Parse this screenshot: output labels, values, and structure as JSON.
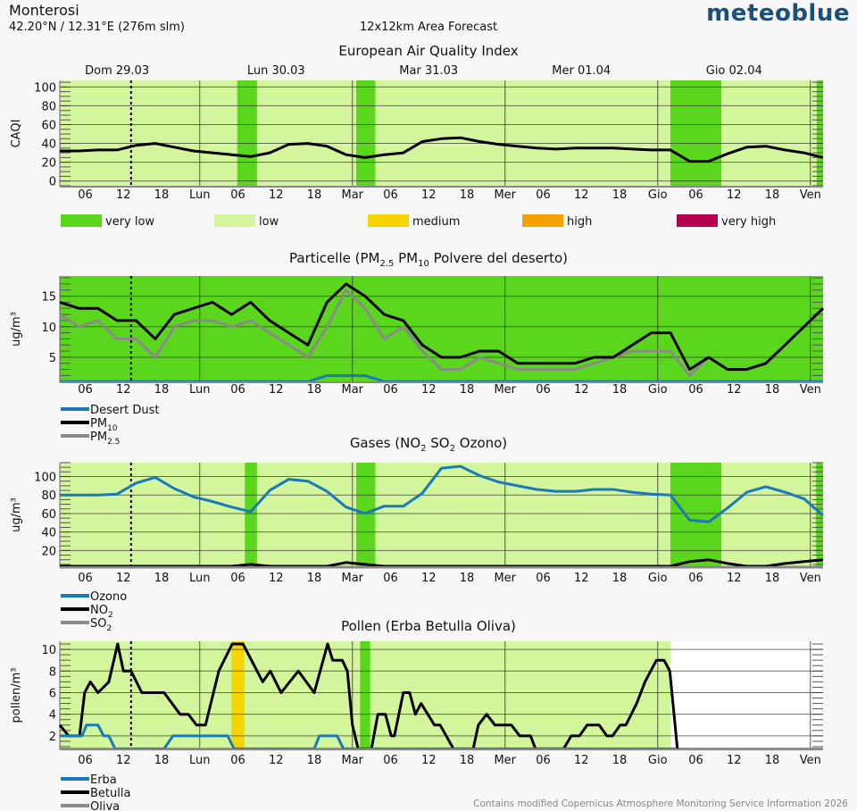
{
  "header": {
    "location": "Monterosi",
    "coordinates": "42.20°N / 12.31°E (276m slm)",
    "area": "12x12km Area Forecast",
    "logo": "meteoblue"
  },
  "footer": "Contains modified Copernicus Atmosphere Monitoring Service Information 2026",
  "caqi_legend": [
    {
      "label": "very low",
      "color": "#5ad61c"
    },
    {
      "label": "low",
      "color": "#d3f69c"
    },
    {
      "label": "medium",
      "color": "#f5d400"
    },
    {
      "label": "high",
      "color": "#f5a100"
    },
    {
      "label": "very high",
      "color": "#b5004d"
    }
  ],
  "days": [
    {
      "label": "Dom 29.03",
      "center_h": 9
    },
    {
      "label": "Lun 30.03",
      "center_h": 34
    },
    {
      "label": "Mar 31.03",
      "center_h": 58
    },
    {
      "label": "Mer 01.04",
      "center_h": 82
    },
    {
      "label": "Gio 02.04",
      "center_h": 106
    }
  ],
  "x_ticks": [
    {
      "h": 4,
      "label": "06"
    },
    {
      "h": 10,
      "label": "12"
    },
    {
      "h": 16,
      "label": "18"
    },
    {
      "h": 22,
      "label": "Lun"
    },
    {
      "h": 28,
      "label": "06"
    },
    {
      "h": 34,
      "label": "12"
    },
    {
      "h": 40,
      "label": "18"
    },
    {
      "h": 46,
      "label": "Mar"
    },
    {
      "h": 52,
      "label": "06"
    },
    {
      "h": 58,
      "label": "12"
    },
    {
      "h": 64,
      "label": "18"
    },
    {
      "h": 70,
      "label": "Mer"
    },
    {
      "h": 76,
      "label": "06"
    },
    {
      "h": 82,
      "label": "12"
    },
    {
      "h": 88,
      "label": "18"
    },
    {
      "h": 94,
      "label": "Gio"
    },
    {
      "h": 100,
      "label": "06"
    },
    {
      "h": 106,
      "label": "12"
    },
    {
      "h": 112,
      "label": "18"
    },
    {
      "h": 118,
      "label": "Ven"
    }
  ],
  "day_boundaries_h": [
    22,
    46,
    70,
    94,
    118
  ],
  "now_h": 11.2,
  "x_range_h": [
    0,
    120
  ],
  "chart_data": [
    {
      "type": "line",
      "title_parts": [
        "European Air Quality Index"
      ],
      "ylabel": "CAQI",
      "ylim": [
        -6,
        107
      ],
      "yticks": [
        0,
        20,
        40,
        60,
        80,
        100
      ],
      "background_level": "low",
      "bands": [
        {
          "from": 27.9,
          "to": 31,
          "level": "very low"
        },
        {
          "from": 46.6,
          "to": 49.6,
          "level": "very low"
        },
        {
          "from": 96,
          "to": 104,
          "level": "very low"
        },
        {
          "from": 119,
          "to": 120,
          "level": "very low"
        }
      ],
      "series": [
        {
          "name_parts": [
            "CAQI"
          ],
          "color": "#000000",
          "step_h": 3,
          "show_legend": false,
          "values": [
            32,
            32,
            33,
            33,
            38,
            40,
            36,
            32,
            30,
            28,
            26,
            30,
            39,
            40,
            37,
            28,
            25,
            28,
            30,
            42,
            45,
            46,
            42,
            39,
            37,
            35,
            34,
            35,
            35,
            35,
            34,
            33,
            33,
            21,
            21,
            29,
            36,
            37,
            33,
            30,
            25
          ]
        }
      ]
    },
    {
      "type": "line",
      "title_parts": [
        "Particelle (PM",
        "2.5",
        " PM",
        "10",
        " Polvere del deserto)"
      ],
      "ylabel": "ug/m³",
      "ylim": [
        0.9,
        18.3
      ],
      "yticks": [
        5,
        10,
        15
      ],
      "background_level": "very low",
      "bands": [],
      "series": [
        {
          "name_parts": [
            "Desert Dust"
          ],
          "color": "#1a78bd",
          "step_h": 3,
          "values": [
            1,
            1,
            1,
            1,
            1,
            1,
            1,
            1,
            1,
            1,
            1,
            1,
            1,
            1,
            2,
            2,
            2,
            1,
            1,
            1,
            1,
            1,
            1,
            1,
            1,
            1,
            1,
            1,
            1,
            1,
            1,
            1,
            1,
            1,
            1,
            1,
            1,
            1,
            1,
            1,
            1
          ]
        },
        {
          "name_parts": [
            "PM",
            "10"
          ],
          "color": "#000000",
          "step_h": 3,
          "values": [
            14,
            13,
            13,
            11,
            11,
            8,
            12,
            13,
            14,
            12,
            14,
            11,
            9,
            7,
            14,
            17,
            15,
            12,
            11,
            7,
            5,
            5,
            6,
            6,
            4,
            4,
            4,
            4,
            5,
            5,
            7,
            9,
            9,
            3,
            5,
            3,
            3,
            4,
            7,
            10,
            13
          ]
        },
        {
          "name_parts": [
            "PM",
            "2.5"
          ],
          "color": "#8a8a8a",
          "step_h": 3,
          "values": [
            12,
            10,
            11,
            8,
            8,
            5,
            10,
            11,
            11,
            10,
            11,
            9,
            7,
            5,
            10,
            16,
            13,
            8,
            10,
            6,
            3,
            3,
            5,
            4,
            3,
            3,
            3,
            3,
            4,
            5,
            6,
            6,
            6,
            2,
            5,
            3,
            3,
            4,
            7,
            10,
            13
          ]
        }
      ]
    },
    {
      "type": "line",
      "title_parts": [
        "Gases (NO",
        "2",
        " SO",
        "2",
        " Ozono)"
      ],
      "ylabel": "ug/m³",
      "ylim": [
        2,
        115
      ],
      "yticks": [
        20,
        40,
        60,
        80,
        100
      ],
      "background_level": "low",
      "bands": [
        {
          "from": 29.1,
          "to": 31,
          "level": "very low"
        },
        {
          "from": 46.6,
          "to": 49.6,
          "level": "very low"
        },
        {
          "from": 96,
          "to": 104,
          "level": "very low"
        },
        {
          "from": 118.9,
          "to": 120,
          "level": "very low"
        }
      ],
      "series": [
        {
          "name_parts": [
            "Ozono"
          ],
          "color": "#1a78bd",
          "step_h": 3,
          "values": [
            80,
            80,
            80,
            81,
            93,
            99,
            87,
            78,
            73,
            67,
            62,
            85,
            97,
            95,
            84,
            67,
            60,
            68,
            68,
            82,
            109,
            111,
            101,
            94,
            90,
            86,
            84,
            84,
            86,
            86,
            83,
            81,
            80,
            53,
            51,
            66,
            83,
            89,
            83,
            76,
            58
          ]
        },
        {
          "name_parts": [
            "NO",
            "2"
          ],
          "color": "#000000",
          "step_h": 3,
          "values": [
            3,
            3,
            3,
            3,
            3,
            3,
            3,
            3,
            3,
            3,
            5,
            3,
            3,
            3,
            3,
            7,
            5,
            3,
            3,
            3,
            3,
            3,
            3,
            3,
            3,
            3,
            3,
            3,
            3,
            3,
            3,
            3,
            3,
            8,
            10,
            6,
            3,
            3,
            6,
            8,
            10
          ]
        },
        {
          "name_parts": [
            "SO",
            "2"
          ],
          "color": "#8a8a8a",
          "step_h": 3,
          "values": [
            2,
            2,
            2,
            2,
            2,
            2,
            2,
            2,
            2,
            2,
            2,
            2,
            2,
            2,
            2,
            2,
            2,
            2,
            2,
            2,
            2,
            2,
            2,
            2,
            2,
            2,
            2,
            2,
            2,
            2,
            2,
            2,
            2,
            2,
            2,
            2,
            2,
            2,
            2,
            2,
            2
          ]
        }
      ]
    },
    {
      "type": "line",
      "title_parts": [
        "Pollen (Erba Betulla Oliva)"
      ],
      "ylabel": "pollen/m³",
      "ylim": [
        0.75,
        10.75
      ],
      "yticks": [
        2,
        4,
        6,
        8,
        10
      ],
      "background_level": null,
      "bands": [
        {
          "from": 0,
          "to": 96,
          "level": "low"
        },
        {
          "from": 27,
          "to": 29,
          "level": "medium"
        },
        {
          "from": 47.2,
          "to": 48.8,
          "level": "very low"
        }
      ],
      "series": [
        {
          "name_parts": [
            "Erba"
          ],
          "color": "#1a78bd",
          "points": [
            [
              0,
              2
            ],
            [
              3.5,
              2
            ],
            [
              4.2,
              3
            ],
            [
              6,
              3
            ],
            [
              6.9,
              2
            ],
            [
              7.7,
              2
            ],
            [
              8.7,
              0.8
            ],
            [
              16.4,
              0.8
            ],
            [
              17.8,
              2
            ],
            [
              26.4,
              2
            ],
            [
              27.4,
              0.8
            ],
            [
              40,
              0.8
            ],
            [
              40.8,
              2
            ],
            [
              43.6,
              2
            ],
            [
              44.6,
              0.8
            ],
            [
              97,
              0.8
            ]
          ]
        },
        {
          "name_parts": [
            "Betulla"
          ],
          "color": "#000000",
          "points": [
            [
              0,
              3
            ],
            [
              1.4,
              2
            ],
            [
              3.1,
              2
            ],
            [
              3.9,
              6
            ],
            [
              4.8,
              7
            ],
            [
              6,
              6
            ],
            [
              7.7,
              7
            ],
            [
              9.1,
              10.5
            ],
            [
              10,
              8
            ],
            [
              11.2,
              8
            ],
            [
              12.9,
              6
            ],
            [
              16.4,
              6
            ],
            [
              18.9,
              4
            ],
            [
              20.2,
              4
            ],
            [
              21.5,
              3
            ],
            [
              22.9,
              3
            ],
            [
              25,
              8
            ],
            [
              27.1,
              10.5
            ],
            [
              28.8,
              10.5
            ],
            [
              31.9,
              7
            ],
            [
              33.1,
              8
            ],
            [
              34.8,
              6
            ],
            [
              37.5,
              8
            ],
            [
              40,
              6
            ],
            [
              42.1,
              10.5
            ],
            [
              42.9,
              9
            ],
            [
              44.4,
              9
            ],
            [
              45.2,
              8
            ],
            [
              46,
              3
            ],
            [
              46.9,
              0.8
            ],
            [
              49,
              0.8
            ],
            [
              50,
              4
            ],
            [
              51.2,
              4
            ],
            [
              52.1,
              2
            ],
            [
              52.6,
              2
            ],
            [
              54,
              6
            ],
            [
              55,
              6
            ],
            [
              55.9,
              4
            ],
            [
              56.8,
              5
            ],
            [
              58.9,
              3
            ],
            [
              59.8,
              3
            ],
            [
              61.9,
              0.8
            ],
            [
              65,
              0.8
            ],
            [
              65.8,
              3
            ],
            [
              67.1,
              4
            ],
            [
              68.4,
              3
            ],
            [
              71,
              3
            ],
            [
              72.3,
              2
            ],
            [
              74,
              2
            ],
            [
              74.8,
              0.8
            ],
            [
              79.2,
              0.8
            ],
            [
              80.4,
              2
            ],
            [
              81.7,
              2
            ],
            [
              82.9,
              3
            ],
            [
              84.8,
              3
            ],
            [
              86,
              2
            ],
            [
              86.9,
              2
            ],
            [
              88.1,
              3
            ],
            [
              89,
              3
            ],
            [
              90.7,
              5
            ],
            [
              92,
              7
            ],
            [
              93.8,
              9
            ],
            [
              95,
              9
            ],
            [
              95.9,
              8
            ],
            [
              97.1,
              0.8
            ]
          ]
        },
        {
          "name_parts": [
            "Oliva"
          ],
          "color": "#8a8a8a",
          "points": [
            [
              0,
              0.78
            ],
            [
              120,
              0.78
            ]
          ]
        }
      ]
    }
  ]
}
